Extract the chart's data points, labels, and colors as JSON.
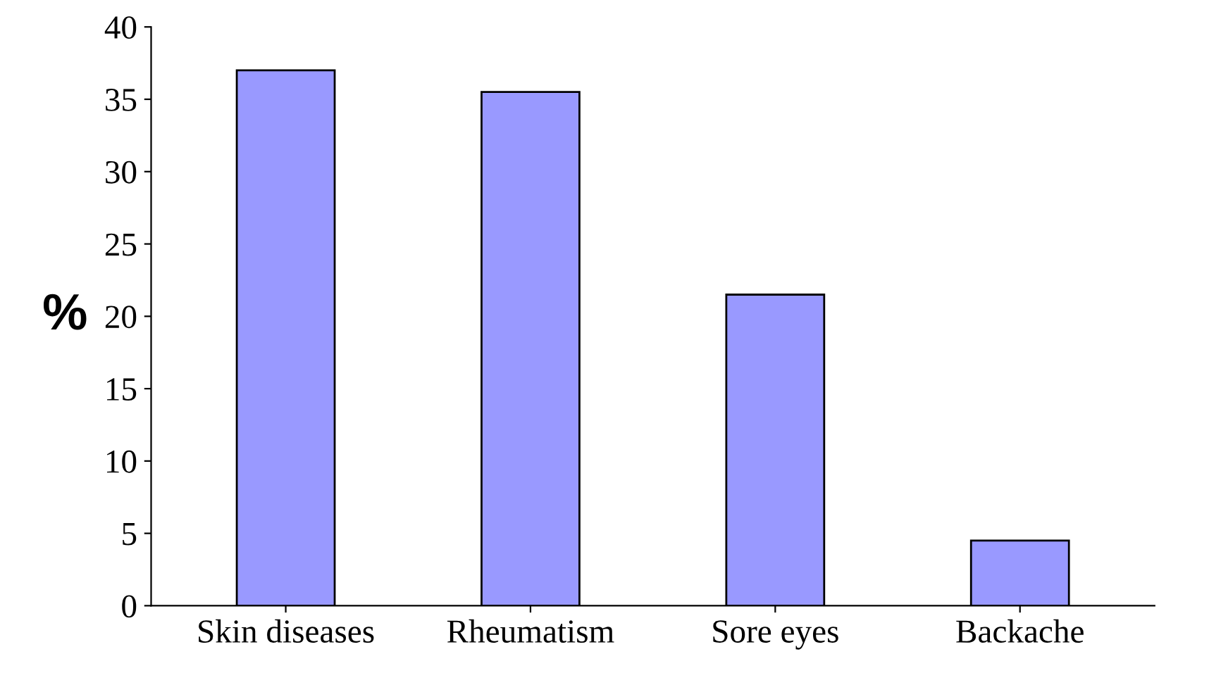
{
  "chart_data": {
    "type": "bar",
    "ylabel": "%",
    "categories": [
      "Skin diseases",
      "Rheumatism",
      "Sore eyes",
      "Backache"
    ],
    "values": [
      37,
      35.5,
      21.5,
      4.5
    ],
    "color": "#9999ff",
    "ylim": [
      0,
      40
    ],
    "yticks": [
      0,
      5,
      10,
      15,
      20,
      25,
      30,
      35,
      40
    ],
    "grid": false
  }
}
